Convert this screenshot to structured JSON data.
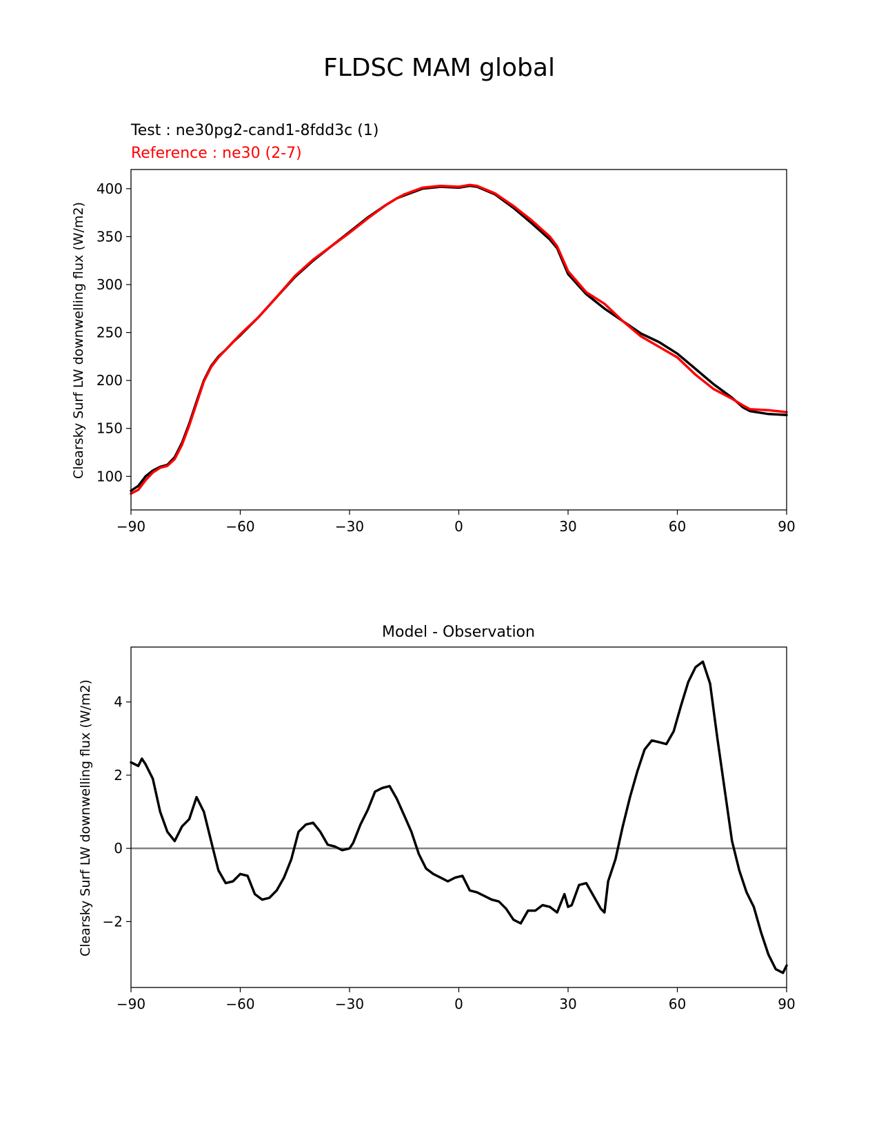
{
  "figure_title": "FLDSC MAM global",
  "chart_data": [
    {
      "type": "line",
      "test_label": "Test : ne30pg2-cand1-8fdd3c (1)",
      "reference_label": "Reference : ne30 (2-7)",
      "ylabel": "Clearsky Surf LW downwelling flux (W/m2)",
      "xlabel": "",
      "xlim": [
        -90,
        90
      ],
      "ylim": [
        65,
        420
      ],
      "xticks": [
        -90,
        -60,
        -30,
        0,
        30,
        60,
        90
      ],
      "xtick_labels": [
        "−90",
        "−60",
        "−30",
        "0",
        "30",
        "60",
        "90"
      ],
      "yticks": [
        100,
        150,
        200,
        250,
        300,
        350,
        400
      ],
      "ytick_labels": [
        "100",
        "150",
        "200",
        "250",
        "300",
        "350",
        "400"
      ],
      "series": [
        {
          "name": "Test",
          "color": "#000000",
          "x": [
            -90,
            -88,
            -86,
            -84,
            -82,
            -80,
            -78,
            -76,
            -74,
            -72,
            -70,
            -68,
            -66,
            -64,
            -62,
            -60,
            -55,
            -50,
            -45,
            -40,
            -35,
            -30,
            -25,
            -20,
            -17,
            -15,
            -10,
            -5,
            0,
            3,
            5,
            10,
            15,
            20,
            25,
            27,
            30,
            35,
            40,
            45,
            50,
            55,
            60,
            65,
            70,
            75,
            78,
            80,
            85,
            90
          ],
          "y": [
            85,
            90,
            100,
            106,
            110,
            112,
            120,
            135,
            155,
            178,
            200,
            215,
            225,
            232,
            240,
            247,
            266,
            287,
            308,
            325,
            340,
            355,
            370,
            383,
            390,
            393,
            400,
            402,
            401,
            403,
            402,
            394,
            380,
            364,
            347,
            338,
            311,
            290,
            275,
            262,
            249,
            240,
            228,
            212,
            196,
            182,
            172,
            168,
            165,
            164
          ]
        },
        {
          "name": "Reference",
          "color": "#ff0000",
          "x": [
            -90,
            -88,
            -86,
            -84,
            -82,
            -80,
            -78,
            -76,
            -74,
            -72,
            -70,
            -68,
            -66,
            -64,
            -62,
            -60,
            -55,
            -50,
            -45,
            -40,
            -35,
            -30,
            -25,
            -20,
            -17,
            -15,
            -10,
            -5,
            0,
            3,
            5,
            10,
            15,
            20,
            25,
            27,
            30,
            35,
            40,
            45,
            50,
            55,
            60,
            65,
            70,
            75,
            78,
            80,
            85,
            90
          ],
          "y": [
            82,
            86,
            96,
            104,
            109,
            111,
            118,
            133,
            153,
            176,
            199,
            214,
            224,
            232,
            240,
            248,
            266,
            287,
            309,
            326,
            340,
            354,
            369,
            383,
            390,
            394,
            401,
            403,
            402,
            404,
            403,
            395,
            382,
            367,
            350,
            340,
            314,
            292,
            280,
            262,
            246,
            235,
            224,
            206,
            191,
            181,
            174,
            170,
            169,
            167
          ]
        }
      ]
    },
    {
      "type": "line",
      "title": "Model - Observation",
      "ylabel": "Clearsky Surf LW downwelling flux (W/m2)",
      "xlabel": "",
      "xlim": [
        -90,
        90
      ],
      "ylim": [
        -3.8,
        5.5
      ],
      "xticks": [
        -90,
        -60,
        -30,
        0,
        30,
        60,
        90
      ],
      "xtick_labels": [
        "−90",
        "−60",
        "−30",
        "0",
        "30",
        "60",
        "90"
      ],
      "yticks": [
        -2,
        0,
        2,
        4
      ],
      "ytick_labels": [
        "−2",
        "0",
        "2",
        "4"
      ],
      "zero_line_color": "#808080",
      "series": [
        {
          "name": "Difference",
          "color": "#000000",
          "x": [
            -90,
            -88,
            -87,
            -86,
            -84,
            -82,
            -80,
            -78,
            -76,
            -74,
            -72,
            -70,
            -68,
            -66,
            -64,
            -62,
            -60,
            -58,
            -56,
            -54,
            -52,
            -50,
            -48,
            -46,
            -44,
            -42,
            -40,
            -38,
            -36,
            -34,
            -32,
            -30,
            -29,
            -27,
            -25,
            -23,
            -21,
            -19,
            -17,
            -15,
            -13,
            -11,
            -9,
            -7,
            -5,
            -3,
            -1,
            1,
            3,
            5,
            7,
            9,
            11,
            13,
            15,
            17,
            19,
            21,
            23,
            25,
            27,
            29,
            30,
            31,
            33,
            35,
            37,
            39,
            40,
            41,
            43,
            45,
            47,
            49,
            51,
            53,
            55,
            57,
            59,
            61,
            63,
            65,
            67,
            69,
            71,
            73,
            75,
            77,
            79,
            81,
            83,
            85,
            87,
            89,
            90
          ],
          "y": [
            2.35,
            2.25,
            2.45,
            2.3,
            1.9,
            1.0,
            0.45,
            0.2,
            0.6,
            0.8,
            1.4,
            1.0,
            0.2,
            -0.6,
            -0.95,
            -0.9,
            -0.7,
            -0.75,
            -1.25,
            -1.4,
            -1.35,
            -1.15,
            -0.8,
            -0.3,
            0.45,
            0.65,
            0.7,
            0.45,
            0.1,
            0.05,
            -0.05,
            0.0,
            0.15,
            0.65,
            1.05,
            1.55,
            1.65,
            1.7,
            1.35,
            0.9,
            0.45,
            -0.15,
            -0.55,
            -0.7,
            -0.8,
            -0.9,
            -0.8,
            -0.75,
            -1.15,
            -1.2,
            -1.3,
            -1.4,
            -1.45,
            -1.65,
            -1.95,
            -2.05,
            -1.7,
            -1.7,
            -1.55,
            -1.6,
            -1.75,
            -1.25,
            -1.6,
            -1.55,
            -1.0,
            -0.95,
            -1.3,
            -1.65,
            -1.75,
            -0.9,
            -0.3,
            0.6,
            1.4,
            2.1,
            2.7,
            2.95,
            2.9,
            2.85,
            3.2,
            3.9,
            4.55,
            4.95,
            5.1,
            4.5,
            3.0,
            1.6,
            0.2,
            -0.6,
            -1.2,
            -1.6,
            -2.3,
            -2.9,
            -3.3,
            -3.4,
            -3.2
          ]
        }
      ]
    }
  ]
}
